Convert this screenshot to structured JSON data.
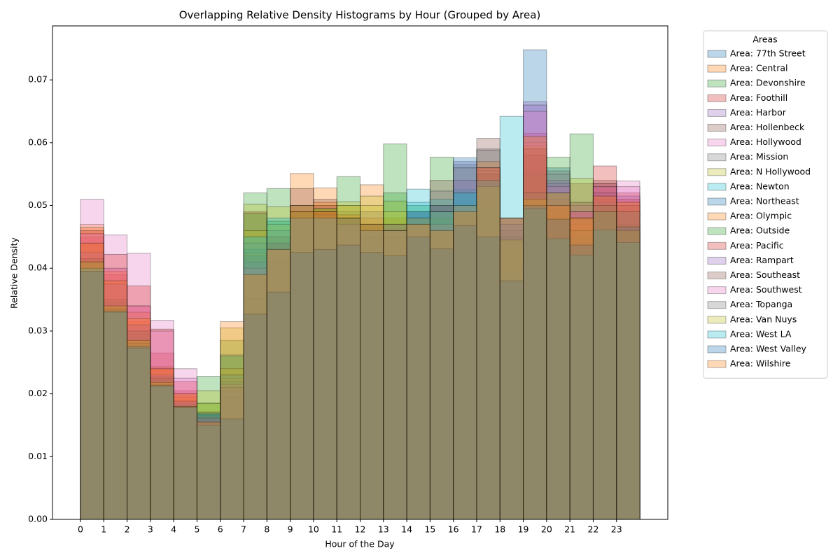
{
  "chart_data": {
    "type": "histogram",
    "title": "Overlapping Relative Density Histograms by Hour (Grouped by Area)",
    "xlabel": "Hour of the Day",
    "ylabel": "Relative Density",
    "legend_title": "Areas",
    "legend": "outside upper right",
    "bins": [
      0,
      1,
      2,
      3,
      4,
      5,
      6,
      7,
      8,
      9,
      10,
      11,
      12,
      13,
      14,
      15,
      16,
      17,
      18,
      19,
      20,
      21,
      22,
      23,
      24
    ],
    "xlim": [
      -1.2,
      25.2
    ],
    "xticks": [
      0,
      1,
      2,
      3,
      4,
      5,
      6,
      7,
      8,
      9,
      10,
      11,
      12,
      13,
      14,
      15,
      16,
      17,
      18,
      19,
      20,
      21,
      22,
      23
    ],
    "ylim": [
      0,
      0.0786
    ],
    "yticks": [
      {
        "value": 0,
        "label": "0.00"
      },
      0.01,
      0.02,
      0.03,
      0.04,
      0.05,
      0.06,
      0.07
    ],
    "alpha": 0.3,
    "series": [
      {
        "name": "Area: 77th Street",
        "color": "#1f77b4",
        "values": [
          0.0387,
          0.0335,
          0.029,
          0.0228,
          0.019,
          0.016,
          0.0165,
          0.033,
          0.04,
          0.0475,
          0.048,
          0.0475,
          0.046,
          0.045,
          0.0475,
          0.046,
          0.049,
          0.052,
          0.047,
          0.0748,
          0.056,
          0.048,
          0.05,
          0.0465
        ]
      },
      {
        "name": "Area: Central",
        "color": "#ff7f0e",
        "values": [
          0.047,
          0.0398,
          0.0315,
          0.024,
          0.02,
          0.0155,
          0.02,
          0.035,
          0.042,
          0.0551,
          0.0528,
          0.05,
          0.0533,
          0.048,
          0.046,
          0.044,
          0.047,
          0.048,
          0.04,
          0.054,
          0.048,
          0.047,
          0.051,
          0.05
        ]
      },
      {
        "name": "Area: Devonshire",
        "color": "#2ca02c",
        "values": [
          0.041,
          0.034,
          0.028,
          0.0215,
          0.0178,
          0.0228,
          0.0285,
          0.052,
          0.0527,
          0.05,
          0.049,
          0.0546,
          0.047,
          0.0598,
          0.047,
          0.0577,
          0.052,
          0.055,
          0.045,
          0.05,
          0.0577,
          0.0614,
          0.049,
          0.045
        ]
      },
      {
        "name": "Area: Foothill",
        "color": "#d62728",
        "values": [
          0.045,
          0.039,
          0.034,
          0.0265,
          0.0205,
          0.0165,
          0.023,
          0.049,
          0.045,
          0.048,
          0.05,
          0.048,
          0.045,
          0.046,
          0.048,
          0.047,
          0.05,
          0.056,
          0.048,
          0.0615,
          0.05,
          0.048,
          0.053,
          0.051
        ]
      },
      {
        "name": "Area: Harbor",
        "color": "#9467bd",
        "values": [
          0.042,
          0.0345,
          0.0295,
          0.0225,
          0.0185,
          0.017,
          0.021,
          0.042,
          0.044,
          0.049,
          0.048,
          0.047,
          0.046,
          0.047,
          0.049,
          0.049,
          0.057,
          0.054,
          0.046,
          0.0665,
          0.054,
          0.048,
          0.052,
          0.049
        ]
      },
      {
        "name": "Area: Hollenbeck",
        "color": "#8c564b",
        "values": [
          0.044,
          0.0375,
          0.0308,
          0.0238,
          0.019,
          0.0158,
          0.0195,
          0.035,
          0.041,
          0.0527,
          0.051,
          0.048,
          0.047,
          0.046,
          0.0475,
          0.054,
          0.048,
          0.0607,
          0.048,
          0.059,
          0.052,
          0.0535,
          0.054,
          0.05
        ]
      },
      {
        "name": "Area: Hollywood",
        "color": "#e377c2",
        "values": [
          0.051,
          0.0453,
          0.0424,
          0.0317,
          0.024,
          0.0172,
          0.022,
          0.04,
          0.043,
          0.047,
          0.047,
          0.046,
          0.046,
          0.045,
          0.047,
          0.047,
          0.05,
          0.053,
          0.047,
          0.06,
          0.051,
          0.05,
          0.0535,
          0.0539
        ]
      },
      {
        "name": "Area: Mission",
        "color": "#7f7f7f",
        "values": [
          0.0415,
          0.034,
          0.0295,
          0.022,
          0.0182,
          0.0162,
          0.02,
          0.042,
          0.044,
          0.05,
          0.05,
          0.049,
          0.047,
          0.047,
          0.049,
          0.05,
          0.0565,
          0.059,
          0.047,
          0.056,
          0.0555,
          0.046,
          0.05,
          0.047
        ]
      },
      {
        "name": "Area: N Hollywood",
        "color": "#bcbd22",
        "values": [
          0.0405,
          0.0335,
          0.0285,
          0.022,
          0.018,
          0.0205,
          0.0305,
          0.0502,
          0.0498,
          0.049,
          0.049,
          0.0506,
          0.0515,
          0.0507,
          0.048,
          0.048,
          0.049,
          0.051,
          0.043,
          0.051,
          0.052,
          0.0543,
          0.048,
          0.046
        ]
      },
      {
        "name": "Area: Newton",
        "color": "#17becf",
        "values": [
          0.04,
          0.034,
          0.0285,
          0.0225,
          0.0185,
          0.0168,
          0.0262,
          0.043,
          0.045,
          0.049,
          0.048,
          0.048,
          0.047,
          0.047,
          0.0526,
          0.051,
          0.0525,
          0.055,
          0.04,
          0.052,
          0.048,
          0.044,
          0.0505,
          0.049
        ]
      },
      {
        "name": "Area: Northeast",
        "color": "#1f77b4",
        "values": [
          0.0408,
          0.0345,
          0.03,
          0.0228,
          0.0185,
          0.017,
          0.022,
          0.042,
          0.044,
          0.048,
          0.048,
          0.047,
          0.046,
          0.046,
          0.049,
          0.05,
          0.0576,
          0.055,
          0.045,
          0.058,
          0.05,
          0.045,
          0.051,
          0.049
        ]
      },
      {
        "name": "Area: Olympic",
        "color": "#ff7f0e",
        "values": [
          0.0465,
          0.0395,
          0.033,
          0.0243,
          0.0195,
          0.0158,
          0.0225,
          0.0425,
          0.045,
          0.049,
          0.0505,
          0.0485,
          0.048,
          0.047,
          0.0465,
          0.046,
          0.048,
          0.057,
          0.048,
          0.0595,
          0.05,
          0.047,
          0.052,
          0.051
        ]
      },
      {
        "name": "Area: Outside",
        "color": "#2ca02c",
        "values": [
          0.041,
          0.0335,
          0.0285,
          0.0222,
          0.0182,
          0.0185,
          0.026,
          0.0488,
          0.0475,
          0.049,
          0.0495,
          0.048,
          0.047,
          0.052,
          0.05,
          0.048,
          0.049,
          0.05,
          0.045,
          0.055,
          0.048,
          0.044,
          0.05,
          0.047
        ]
      },
      {
        "name": "Area: Pacific",
        "color": "#d62728",
        "values": [
          0.046,
          0.0422,
          0.0372,
          0.0303,
          0.022,
          0.0162,
          0.021,
          0.04,
          0.044,
          0.048,
          0.049,
          0.048,
          0.046,
          0.046,
          0.048,
          0.047,
          0.05,
          0.055,
          0.045,
          0.058,
          0.051,
          0.049,
          0.0563,
          0.052
        ]
      },
      {
        "name": "Area: Rampart",
        "color": "#9467bd",
        "values": [
          0.0425,
          0.0375,
          0.031,
          0.023,
          0.0188,
          0.016,
          0.0205,
          0.041,
          0.043,
          0.049,
          0.049,
          0.047,
          0.047,
          0.047,
          0.049,
          0.049,
          0.054,
          0.056,
          0.047,
          0.066,
          0.0535,
          0.048,
          0.052,
          0.0515
        ]
      },
      {
        "name": "Area: Southeast",
        "color": "#8c564b",
        "values": [
          0.0415,
          0.035,
          0.03,
          0.0225,
          0.018,
          0.0155,
          0.0195,
          0.0352,
          0.041,
          0.049,
          0.049,
          0.047,
          0.045,
          0.045,
          0.047,
          0.05,
          0.05,
          0.0556,
          0.046,
          0.059,
          0.052,
          0.0505,
          0.0535,
          0.05
        ]
      },
      {
        "name": "Area: Southwest",
        "color": "#e377c2",
        "values": [
          0.0455,
          0.04,
          0.034,
          0.03,
          0.0225,
          0.016,
          0.0215,
          0.04,
          0.043,
          0.048,
          0.048,
          0.047,
          0.046,
          0.046,
          0.047,
          0.047,
          0.05,
          0.056,
          0.048,
          0.065,
          0.053,
          0.049,
          0.053,
          0.053
        ]
      },
      {
        "name": "Area: Topanga",
        "color": "#7f7f7f",
        "values": [
          0.041,
          0.0335,
          0.028,
          0.0213,
          0.0178,
          0.0165,
          0.021,
          0.044,
          0.046,
          0.049,
          0.0485,
          0.048,
          0.049,
          0.047,
          0.048,
          0.0523,
          0.056,
          0.0588,
          0.048,
          0.052,
          0.055,
          0.046,
          0.05,
          0.049
        ]
      },
      {
        "name": "Area: Van Nuys",
        "color": "#bcbd22",
        "values": [
          0.041,
          0.034,
          0.0285,
          0.0218,
          0.018,
          0.0185,
          0.024,
          0.046,
          0.047,
          0.049,
          0.0495,
          0.05,
          0.05,
          0.049,
          0.048,
          0.049,
          0.05,
          0.053,
          0.0445,
          0.051,
          0.052,
          0.048,
          0.049,
          0.046
        ]
      },
      {
        "name": "Area: West LA",
        "color": "#17becf",
        "values": [
          0.04,
          0.033,
          0.0273,
          0.0212,
          0.0178,
          0.015,
          0.023,
          0.045,
          0.048,
          0.048,
          0.048,
          0.048,
          0.046,
          0.046,
          0.0505,
          0.049,
          0.052,
          0.054,
          0.0642,
          0.0495,
          0.0447,
          0.0421,
          0.0461,
          0.0441
        ]
      },
      {
        "name": "Area: West Valley",
        "color": "#1f77b4",
        "values": [
          0.0395,
          0.0332,
          0.0276,
          0.0214,
          0.018,
          0.0168,
          0.016,
          0.0327,
          0.0362,
          0.0425,
          0.043,
          0.0437,
          0.0425,
          0.042,
          0.045,
          0.0431,
          0.0468,
          0.045,
          0.038,
          0.05,
          0.0478,
          0.0437,
          0.049,
          0.0466
        ]
      },
      {
        "name": "Area: Wilshire",
        "color": "#ff7f0e",
        "values": [
          0.044,
          0.038,
          0.032,
          0.024,
          0.02,
          0.0155,
          0.0315,
          0.039,
          0.043,
          0.05,
          0.049,
          0.048,
          0.047,
          0.046,
          0.047,
          0.046,
          0.049,
          0.056,
          0.048,
          0.061,
          0.05,
          0.048,
          0.0515,
          0.0505
        ]
      }
    ]
  }
}
